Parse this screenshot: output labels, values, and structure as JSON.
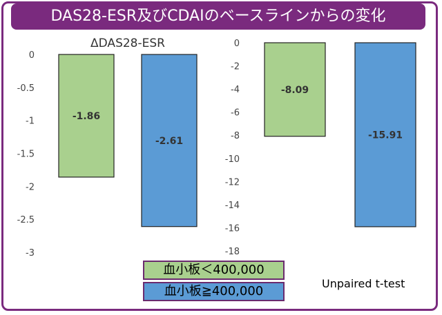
{
  "title": "DAS28-ESR及びCDAIのベースラインからの変化",
  "legend": [
    {
      "label": "血小板＜400,000",
      "color": "#a9d08e"
    },
    {
      "label": "血小板≧400,000",
      "color": "#5b9bd5"
    }
  ],
  "note": "Unpaired t-test",
  "chart_data": [
    {
      "type": "bar",
      "title": "ΔDAS28-ESR",
      "categories": [
        "血小板＜400,000",
        "血小板≧400,000"
      ],
      "values": [
        -1.86,
        -2.61
      ],
      "value_labels": [
        "-1.86",
        "-2.61"
      ],
      "colors": [
        "#a9d08e",
        "#5b9bd5"
      ],
      "ylim": [
        -3,
        0
      ],
      "yticks": [
        0,
        -0.5,
        -1,
        -1.5,
        -2,
        -2.5,
        -3
      ],
      "ytick_labels": [
        "0",
        "-0.5",
        "-1",
        "-1.5",
        "-2",
        "-2.5",
        "-3"
      ],
      "grid": false,
      "legend": "bottom"
    },
    {
      "type": "bar",
      "title": "",
      "categories": [
        "血小板＜400,000",
        "血小板≧400,000"
      ],
      "values": [
        -8.09,
        -15.91
      ],
      "value_labels": [
        "-8.09",
        "-15.91"
      ],
      "colors": [
        "#a9d08e",
        "#5b9bd5"
      ],
      "ylim": [
        -18,
        0
      ],
      "yticks": [
        0,
        -2,
        -4,
        -6,
        -8,
        -10,
        -12,
        -14,
        -16,
        -18
      ],
      "ytick_labels": [
        "0",
        "-2",
        "-4",
        "-6",
        "-8",
        "-10",
        "-12",
        "-14",
        "-16",
        "-18"
      ],
      "grid": false,
      "legend": "bottom"
    }
  ]
}
